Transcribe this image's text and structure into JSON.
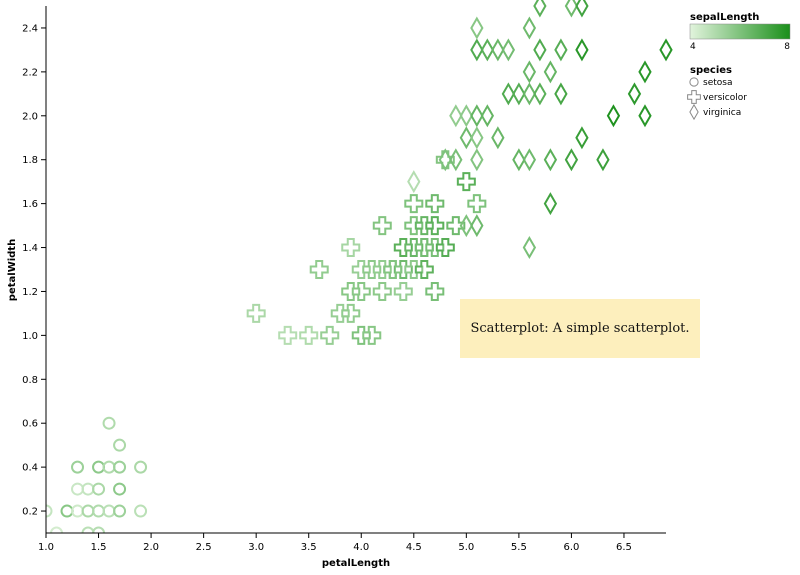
{
  "chart_data": {
    "type": "scatter",
    "xlabel": "petalLength",
    "ylabel": "petalWidth",
    "xlim": [
      1.0,
      6.9
    ],
    "ylim": [
      0.1,
      2.5
    ],
    "x_ticks": [
      "1.0",
      "1.5",
      "2.0",
      "2.5",
      "3.0",
      "3.5",
      "4.0",
      "4.5",
      "5.0",
      "5.5",
      "6.0",
      "6.5"
    ],
    "y_ticks": [
      "0.2",
      "0.4",
      "0.6",
      "0.8",
      "1.0",
      "1.2",
      "1.4",
      "1.6",
      "1.8",
      "2.0",
      "2.2",
      "2.4"
    ],
    "color_field": "sepalLength",
    "color_range": [
      4,
      8
    ],
    "color_scale_labels": [
      "4",
      "8"
    ],
    "color_low": "#e2f4dd",
    "color_high": "#1a8f1a",
    "shape_field": "species",
    "shape_legend": [
      {
        "label": "setosa",
        "shape": "circle"
      },
      {
        "label": "versicolor",
        "shape": "cross"
      },
      {
        "label": "virginica",
        "shape": "diamond"
      }
    ],
    "series": [
      {
        "name": "setosa",
        "shape": "circle",
        "points": [
          [
            1.0,
            0.2,
            4.6
          ],
          [
            1.1,
            0.1,
            4.3
          ],
          [
            1.2,
            0.2,
            5.8
          ],
          [
            1.3,
            0.2,
            4.4
          ],
          [
            1.3,
            0.3,
            4.5
          ],
          [
            1.3,
            0.4,
            5.4
          ],
          [
            1.4,
            0.2,
            5.1
          ],
          [
            1.4,
            0.3,
            4.6
          ],
          [
            1.4,
            0.1,
            4.8
          ],
          [
            1.5,
            0.2,
            5.0
          ],
          [
            1.5,
            0.4,
            5.7
          ],
          [
            1.5,
            0.1,
            4.9
          ],
          [
            1.5,
            0.3,
            5.1
          ],
          [
            1.6,
            0.2,
            4.8
          ],
          [
            1.6,
            0.4,
            5.0
          ],
          [
            1.6,
            0.6,
            5.0
          ],
          [
            1.7,
            0.3,
            5.7
          ],
          [
            1.7,
            0.4,
            5.4
          ],
          [
            1.7,
            0.2,
            5.4
          ],
          [
            1.7,
            0.5,
            5.1
          ],
          [
            1.9,
            0.2,
            4.8
          ],
          [
            1.9,
            0.4,
            5.1
          ],
          [
            1.5,
            0.0,
            5.2
          ]
        ]
      },
      {
        "name": "versicolor",
        "shape": "cross",
        "points": [
          [
            3.0,
            1.1,
            5.1
          ],
          [
            3.3,
            1.0,
            4.9
          ],
          [
            3.5,
            1.0,
            5.0
          ],
          [
            3.6,
            1.3,
            5.6
          ],
          [
            3.7,
            1.0,
            5.5
          ],
          [
            3.8,
            1.1,
            5.5
          ],
          [
            3.9,
            1.1,
            5.6
          ],
          [
            3.9,
            1.2,
            5.8
          ],
          [
            3.9,
            1.4,
            5.2
          ],
          [
            4.0,
            1.0,
            6.0
          ],
          [
            4.0,
            1.2,
            5.8
          ],
          [
            4.0,
            1.3,
            5.5
          ],
          [
            4.1,
            1.0,
            5.8
          ],
          [
            4.1,
            1.3,
            5.7
          ],
          [
            4.2,
            1.2,
            5.7
          ],
          [
            4.2,
            1.3,
            5.6
          ],
          [
            4.2,
            1.5,
            5.9
          ],
          [
            4.3,
            1.3,
            6.2
          ],
          [
            4.4,
            1.2,
            5.5
          ],
          [
            4.4,
            1.3,
            6.3
          ],
          [
            4.4,
            1.4,
            6.7
          ],
          [
            4.5,
            1.3,
            5.7
          ],
          [
            4.5,
            1.5,
            6.0
          ],
          [
            4.5,
            1.6,
            6.0
          ],
          [
            4.6,
            1.3,
            6.6
          ],
          [
            4.6,
            1.4,
            6.1
          ],
          [
            4.6,
            1.5,
            6.5
          ],
          [
            4.7,
            1.2,
            6.1
          ],
          [
            4.7,
            1.4,
            6.1
          ],
          [
            4.7,
            1.5,
            6.7
          ],
          [
            4.7,
            1.6,
            6.3
          ],
          [
            4.8,
            1.4,
            6.8
          ],
          [
            4.8,
            1.8,
            5.9
          ],
          [
            4.9,
            1.5,
            6.3
          ],
          [
            5.0,
            1.7,
            6.7
          ],
          [
            5.1,
            1.6,
            6.0
          ],
          [
            4.5,
            1.4,
            6.4
          ],
          [
            4.3,
            1.3,
            5.9
          ],
          [
            4.6,
            1.4,
            6.2
          ]
        ]
      },
      {
        "name": "virginica",
        "shape": "diamond",
        "points": [
          [
            4.5,
            1.7,
            4.9
          ],
          [
            4.8,
            1.8,
            6.0
          ],
          [
            4.9,
            1.8,
            6.1
          ],
          [
            4.9,
            2.0,
            5.6
          ],
          [
            5.0,
            1.5,
            6.0
          ],
          [
            5.0,
            1.9,
            6.3
          ],
          [
            5.0,
            2.0,
            5.7
          ],
          [
            5.1,
            1.5,
            6.3
          ],
          [
            5.1,
            1.8,
            5.9
          ],
          [
            5.1,
            1.9,
            5.8
          ],
          [
            5.1,
            2.0,
            6.5
          ],
          [
            5.1,
            2.3,
            6.9
          ],
          [
            5.1,
            2.4,
            5.8
          ],
          [
            5.2,
            2.0,
            6.5
          ],
          [
            5.2,
            2.3,
            6.7
          ],
          [
            5.3,
            1.9,
            6.4
          ],
          [
            5.3,
            2.3,
            6.4
          ],
          [
            5.4,
            2.1,
            6.9
          ],
          [
            5.4,
            2.3,
            6.2
          ],
          [
            5.5,
            1.8,
            6.5
          ],
          [
            5.5,
            2.1,
            6.8
          ],
          [
            5.6,
            1.4,
            6.1
          ],
          [
            5.6,
            1.8,
            6.3
          ],
          [
            5.6,
            2.1,
            6.4
          ],
          [
            5.6,
            2.2,
            6.4
          ],
          [
            5.6,
            2.4,
            6.3
          ],
          [
            5.7,
            2.1,
            6.7
          ],
          [
            5.7,
            2.3,
            6.9
          ],
          [
            5.7,
            2.5,
            6.7
          ],
          [
            5.8,
            1.6,
            7.2
          ],
          [
            5.8,
            1.8,
            6.7
          ],
          [
            5.8,
            2.2,
            6.5
          ],
          [
            5.9,
            2.1,
            7.1
          ],
          [
            5.9,
            2.3,
            6.8
          ],
          [
            6.0,
            1.8,
            7.2
          ],
          [
            6.0,
            2.5,
            6.3
          ],
          [
            6.1,
            1.9,
            7.4
          ],
          [
            6.1,
            2.3,
            7.7
          ],
          [
            6.1,
            2.5,
            7.2
          ],
          [
            6.3,
            1.8,
            7.3
          ],
          [
            6.4,
            2.0,
            7.9
          ],
          [
            6.6,
            2.1,
            7.6
          ],
          [
            6.7,
            2.0,
            7.7
          ],
          [
            6.7,
            2.2,
            7.7
          ],
          [
            6.9,
            2.3,
            7.7
          ]
        ]
      }
    ]
  },
  "tooltip": {
    "text": "Scatterplot: A simple scatterplot."
  }
}
